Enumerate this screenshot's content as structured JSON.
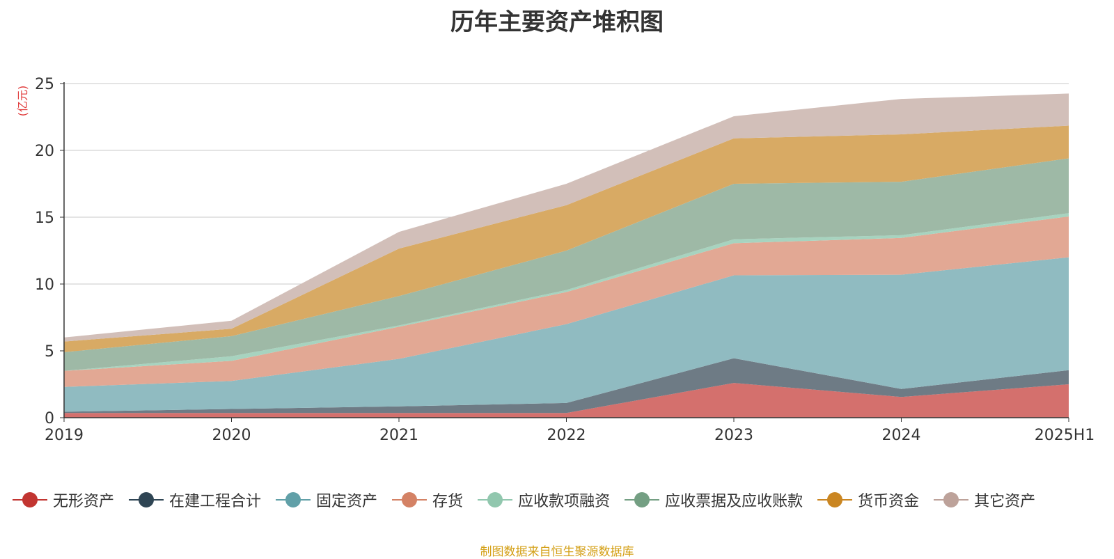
{
  "title": "历年主要资产堆积图",
  "source_note": "制图数据来自恒生聚源数据库",
  "chart_data": {
    "type": "area",
    "stacked": true,
    "title": "历年主要资产堆积图",
    "ylabel": "(亿元)",
    "xlabel": "",
    "ylim": [
      0,
      25
    ],
    "yticks": [
      0,
      5,
      10,
      15,
      20,
      25
    ],
    "grid": true,
    "legend_position": "bottom",
    "categories": [
      "2019",
      "2020",
      "2021",
      "2022",
      "2023",
      "2024",
      "2025H1"
    ],
    "series": [
      {
        "name": "无形资产",
        "color": "#c23531",
        "fill": "#d4706d",
        "values": [
          0.35,
          0.35,
          0.35,
          0.35,
          2.6,
          1.55,
          2.5
        ]
      },
      {
        "name": "在建工程合计",
        "color": "#2f4554",
        "fill": "#6e7b85",
        "values": [
          0.1,
          0.3,
          0.5,
          0.75,
          1.85,
          0.6,
          1.05
        ]
      },
      {
        "name": "固定资产",
        "color": "#61a0a8",
        "fill": "#90bbc1",
        "values": [
          1.85,
          2.1,
          3.55,
          5.9,
          6.2,
          8.55,
          8.45
        ]
      },
      {
        "name": "存货",
        "color": "#d48265",
        "fill": "#e2a894",
        "values": [
          1.2,
          1.5,
          2.4,
          2.4,
          2.4,
          2.75,
          3.05
        ]
      },
      {
        "name": "应收款项融资",
        "color": "#91c7ae",
        "fill": "#a7d3bf",
        "values": [
          0.0,
          0.35,
          0.1,
          0.15,
          0.3,
          0.2,
          0.25
        ]
      },
      {
        "name": "应收票据及应收账款",
        "color": "#749f83",
        "fill": "#9eb9a6",
        "values": [
          1.4,
          1.5,
          2.2,
          2.95,
          4.15,
          4.0,
          4.1
        ]
      },
      {
        "name": "货币资金",
        "color": "#ca8622",
        "fill": "#d8aa64",
        "values": [
          0.8,
          0.55,
          3.55,
          3.4,
          3.4,
          3.55,
          2.45
        ]
      },
      {
        "name": "其它资产",
        "color": "#bda29a",
        "fill": "#d2bfb9",
        "values": [
          0.3,
          0.6,
          1.25,
          1.6,
          1.65,
          2.65,
          2.4
        ]
      }
    ]
  }
}
